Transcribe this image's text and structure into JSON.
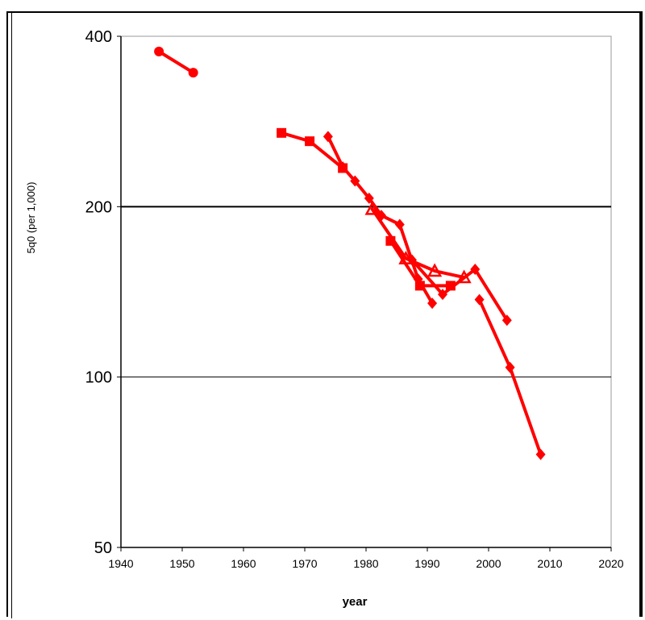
{
  "chart_data": {
    "type": "line",
    "xlabel": "year",
    "ylabel": "5q0 (per 1,000)",
    "xlim": [
      1940,
      2020
    ],
    "ylim": [
      50,
      400
    ],
    "y_scale": "log",
    "x_ticks": [
      "1940",
      "1950",
      "1960",
      "1970",
      "1980",
      "1990",
      "2000",
      "2010",
      "2020"
    ],
    "y_ticks": [
      {
        "value": 400,
        "label": "400"
      },
      {
        "value": 200,
        "label": "200"
      },
      {
        "value": 100,
        "label": "100"
      },
      {
        "value": 50,
        "label": "50"
      }
    ],
    "gridlines_y": [
      200,
      100
    ],
    "grid": false,
    "color": "#ff0000",
    "series": [
      {
        "marker": "circle",
        "points": [
          [
            1946.2,
            376
          ],
          [
            1951.8,
            345
          ]
        ]
      },
      {
        "marker": "square",
        "points": [
          [
            1966.2,
            270
          ],
          [
            1970.8,
            261
          ],
          [
            1976.2,
            234
          ]
        ]
      },
      {
        "marker": "diamond",
        "points": [
          [
            1973.8,
            266
          ],
          [
            1976.2,
            235
          ],
          [
            1978.2,
            222
          ],
          [
            1980.5,
            207
          ],
          [
            1982.5,
            193
          ],
          [
            1985.5,
            186
          ],
          [
            1988.5,
            149
          ],
          [
            1990.8,
            135
          ]
        ]
      },
      {
        "marker": "triangle",
        "points": [
          [
            1981.0,
            198
          ],
          [
            1986.5,
            162
          ],
          [
            1991.2,
            154
          ],
          [
            1996.0,
            150
          ]
        ]
      },
      {
        "marker": "square",
        "points": [
          [
            1984.0,
            174
          ],
          [
            1988.8,
            145
          ],
          [
            1993.8,
            145
          ]
        ]
      },
      {
        "marker": "diamond",
        "points": [
          [
            1987.5,
            161
          ],
          [
            1992.5,
            140
          ],
          [
            1997.8,
            155
          ],
          [
            2003.0,
            126
          ]
        ]
      },
      {
        "marker": "diamond",
        "points": [
          [
            1998.5,
            137
          ],
          [
            2003.5,
            104
          ],
          [
            2008.5,
            73
          ]
        ]
      }
    ]
  }
}
